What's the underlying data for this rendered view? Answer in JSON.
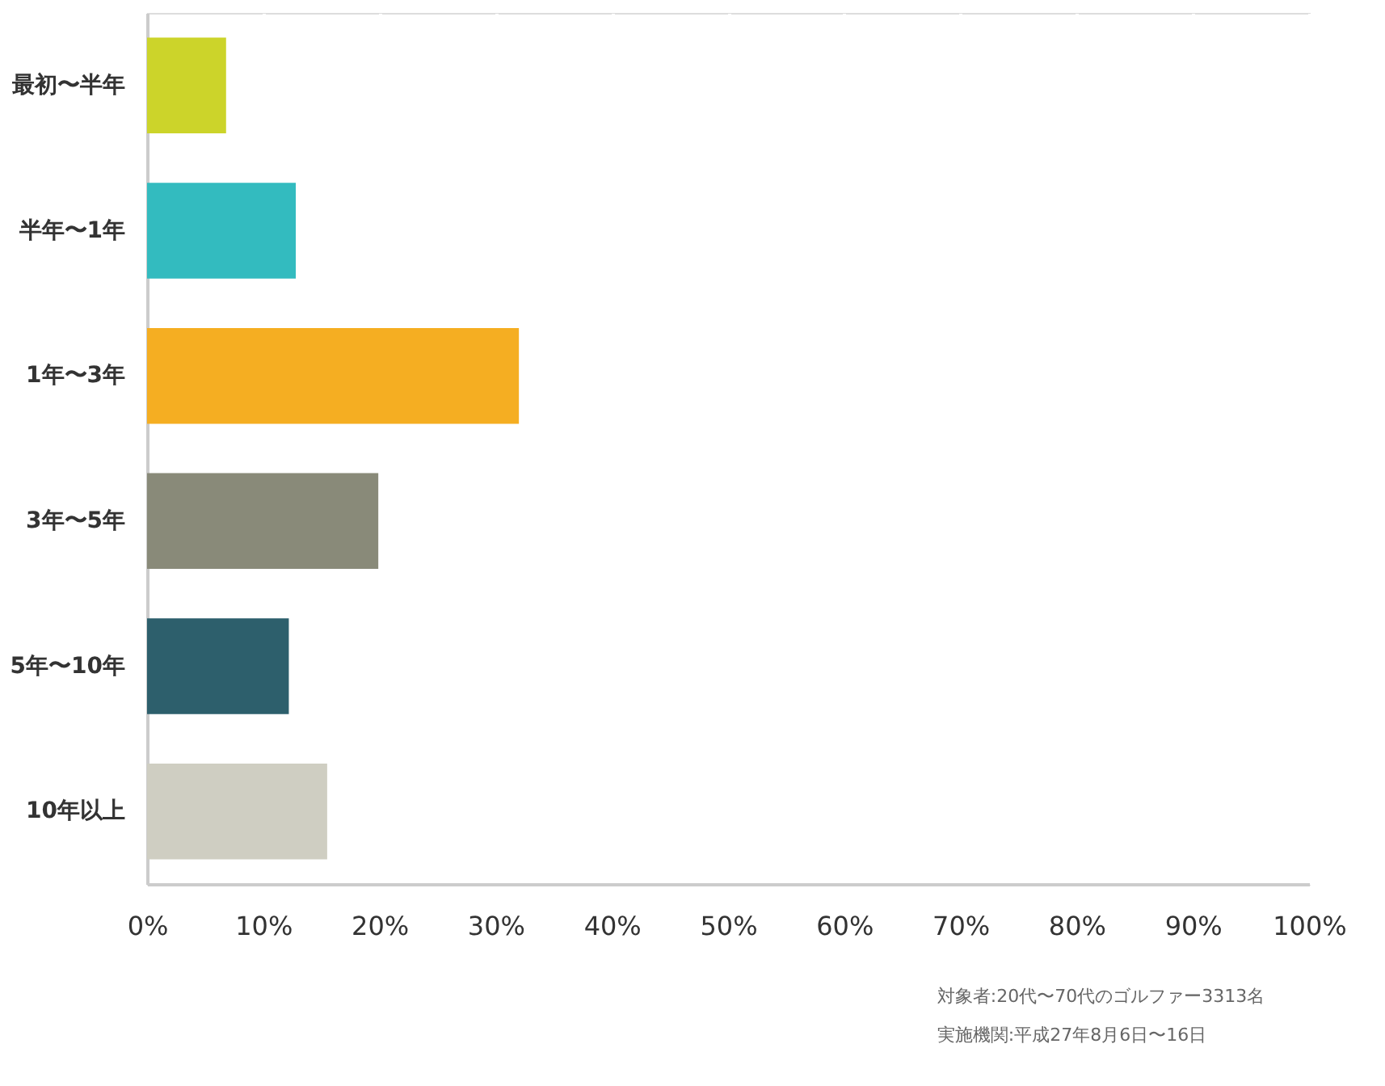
{
  "chart_data": {
    "type": "bar",
    "orientation": "horizontal",
    "categories": [
      "最初〜半年",
      "半年〜1年",
      "1年〜3年",
      "3年〜5年",
      "5年〜10年",
      "10年以上"
    ],
    "values": [
      6.8,
      12.8,
      32.0,
      19.9,
      12.2,
      15.5
    ],
    "colors": [
      "#ccd42a",
      "#33bbbf",
      "#f5ae22",
      "#898a79",
      "#2d5f6c",
      "#cfcec2"
    ],
    "xlim": [
      0,
      100
    ],
    "xticks": [
      {
        "value": 0,
        "label": "0%"
      },
      {
        "value": 10,
        "label": "10%"
      },
      {
        "value": 20,
        "label": "20%"
      },
      {
        "value": 30,
        "label": "30%"
      },
      {
        "value": 40,
        "label": "40%"
      },
      {
        "value": 50,
        "label": "50%"
      },
      {
        "value": 60,
        "label": "60%"
      },
      {
        "value": 70,
        "label": "70%"
      },
      {
        "value": 80,
        "label": "80%"
      },
      {
        "value": 90,
        "label": "90%"
      },
      {
        "value": 100,
        "label": "100%"
      }
    ],
    "grid": "x",
    "annotations": [
      "対象者:20代〜70代のゴルファー3313名",
      "実施機関:平成27年8月6日〜16日"
    ]
  }
}
